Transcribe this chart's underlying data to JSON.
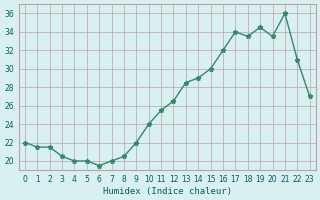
{
  "x": [
    0,
    1,
    2,
    3,
    4,
    5,
    6,
    7,
    8,
    9,
    10,
    11,
    12,
    13,
    14,
    15,
    16,
    17,
    18,
    19,
    20,
    21,
    22,
    23
  ],
  "y": [
    22,
    21.5,
    21.5,
    20.5,
    20,
    20,
    19.5,
    20,
    20.5,
    22,
    24,
    25.5,
    26.5,
    28.5,
    29,
    30,
    32,
    34,
    33.5,
    34.5,
    33.5,
    36,
    31,
    27
  ],
  "xlabel": "Humidex (Indice chaleur)",
  "ylim": [
    19,
    37
  ],
  "yticks": [
    20,
    22,
    24,
    26,
    28,
    30,
    32,
    34,
    36
  ],
  "xticks": [
    0,
    1,
    2,
    3,
    4,
    5,
    6,
    7,
    8,
    9,
    10,
    11,
    12,
    13,
    14,
    15,
    16,
    17,
    18,
    19,
    20,
    21,
    22,
    23
  ],
  "line_color": "#2e8b6e",
  "marker": "*",
  "bg_color": "#d8f0f0",
  "grid_color": "#c0a0a0",
  "title_color": "#006060",
  "label_color": "#006060"
}
